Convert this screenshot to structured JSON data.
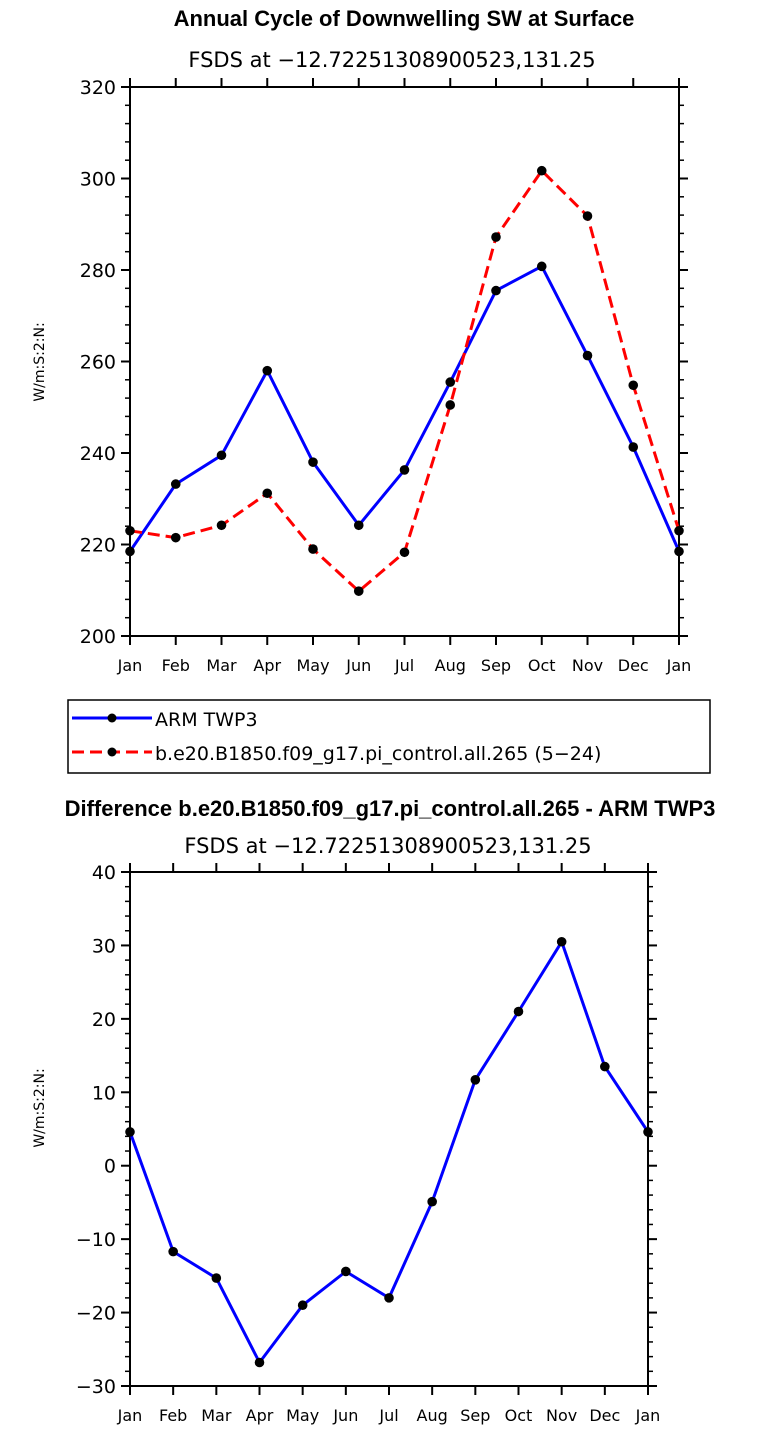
{
  "chart_data": [
    {
      "type": "line",
      "title": "Annual Cycle of Downwelling SW at Surface",
      "subtitle": "FSDS at −12.72251308900523,131.25",
      "xlabel": "",
      "ylabel": "W/m:S:2:N:",
      "categories": [
        "Jan",
        "Feb",
        "Mar",
        "Apr",
        "May",
        "Jun",
        "Jul",
        "Aug",
        "Sep",
        "Oct",
        "Nov",
        "Dec",
        "Jan"
      ],
      "ylim": [
        200,
        320
      ],
      "yticks": [
        "200",
        "220",
        "240",
        "260",
        "280",
        "300",
        "320"
      ],
      "series": [
        {
          "name": "ARM TWP3",
          "color": "#0000ff",
          "dash": "solid",
          "values": [
            218.5,
            233.2,
            239.5,
            258.0,
            238.0,
            224.2,
            236.3,
            255.5,
            275.5,
            280.8,
            261.3,
            241.3,
            218.5
          ]
        },
        {
          "name": "b.e20.B1850.f09_g17.pi_control.all.265 (5−24)",
          "color": "#ff0000",
          "dash": "dashed",
          "values": [
            223.0,
            221.5,
            224.2,
            231.2,
            219.0,
            209.8,
            218.3,
            250.5,
            287.2,
            301.7,
            291.8,
            254.8,
            223.0
          ]
        }
      ],
      "legend": "below"
    },
    {
      "type": "line",
      "title": "Difference b.e20.B1850.f09_g17.pi_control.all.265 - ARM TWP3",
      "subtitle": "FSDS at −12.72251308900523,131.25",
      "xlabel": "",
      "ylabel": "W/m:S:2:N:",
      "categories": [
        "Jan",
        "Feb",
        "Mar",
        "Apr",
        "May",
        "Jun",
        "Jul",
        "Aug",
        "Sep",
        "Oct",
        "Nov",
        "Dec",
        "Jan"
      ],
      "ylim": [
        -30,
        40
      ],
      "yticks": [
        "−30",
        "−20",
        "−10",
        "0",
        "10",
        "20",
        "30",
        "40"
      ],
      "series": [
        {
          "name": "Difference",
          "color": "#0000ff",
          "dash": "solid",
          "values": [
            4.6,
            -11.7,
            -15.3,
            -26.8,
            -19.0,
            -14.4,
            -18.0,
            -4.9,
            11.7,
            21.0,
            30.5,
            13.5,
            4.6
          ]
        }
      ]
    }
  ]
}
